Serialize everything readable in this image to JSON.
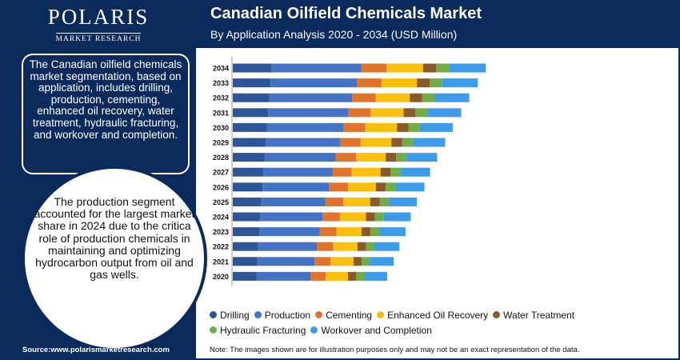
{
  "logo": {
    "name": "POLARIS",
    "tagline": "MARKET RESEARCH"
  },
  "header": {
    "title": "Canadian Oilfield Chemicals Market",
    "subtitle": "By Application Analysis 2020 - 2034 (USD Million)"
  },
  "sidebar": {
    "summary": "The Canadian oilfield chemicals market segmentation, based on application, includes drilling, production, cementing, enhanced oil recovery, water treatment, hydraulic fracturing, and workover and completion.",
    "highlight": "The production segment accounted for the largest market share in 2024 due to the critica role of production chemicals in maintaining and optimizing hydrocarbon output from oil and gas wells.",
    "source": "Source:www.polarismarketresearch.com"
  },
  "note": "Note: The images shown are for illustration purposes only and may not be an exact representation of the data.",
  "chart_data": {
    "type": "bar",
    "orientation": "horizontal",
    "stacked": true,
    "categories": [
      "2034",
      "2033",
      "2032",
      "2031",
      "2030",
      "2029",
      "2028",
      "2027",
      "2026",
      "2025",
      "2024",
      "2023",
      "2022",
      "2021",
      "2020"
    ],
    "series": [
      {
        "name": "Drilling",
        "color": "#2e5597",
        "values": [
          82,
          80,
          77,
          75,
          72,
          70,
          67,
          65,
          63,
          60,
          58,
          56,
          54,
          52,
          50
        ]
      },
      {
        "name": "Production",
        "color": "#4472c4",
        "values": [
          190,
          183,
          176,
          169,
          163,
          157,
          151,
          146,
          141,
          136,
          132,
          128,
          124,
          121,
          115
        ]
      },
      {
        "name": "Cementing",
        "color": "#e0742a",
        "values": [
          54,
          52,
          50,
          48,
          46,
          44,
          43,
          41,
          40,
          38,
          37,
          36,
          35,
          34,
          32
        ]
      },
      {
        "name": "Enhanced Oil Recovery",
        "color": "#fbc00d",
        "values": [
          77,
          75,
          72,
          70,
          67,
          65,
          63,
          61,
          59,
          57,
          55,
          53,
          51,
          49,
          47
        ]
      },
      {
        "name": "Water Treatment",
        "color": "#8b5a2b",
        "values": [
          28,
          27,
          26,
          25,
          24,
          23,
          22,
          21,
          21,
          20,
          19,
          19,
          18,
          17,
          17
        ]
      },
      {
        "name": "Hydraulic Fracturing",
        "color": "#70ad47",
        "values": [
          27,
          26,
          26,
          25,
          24,
          23,
          22,
          21,
          21,
          20,
          19,
          19,
          18,
          17,
          17
        ]
      },
      {
        "name": "Workover and Completion",
        "color": "#3d9be9",
        "values": [
          78,
          76,
          74,
          72,
          70,
          68,
          65,
          63,
          61,
          59,
          57,
          55,
          53,
          51,
          49
        ]
      }
    ]
  }
}
